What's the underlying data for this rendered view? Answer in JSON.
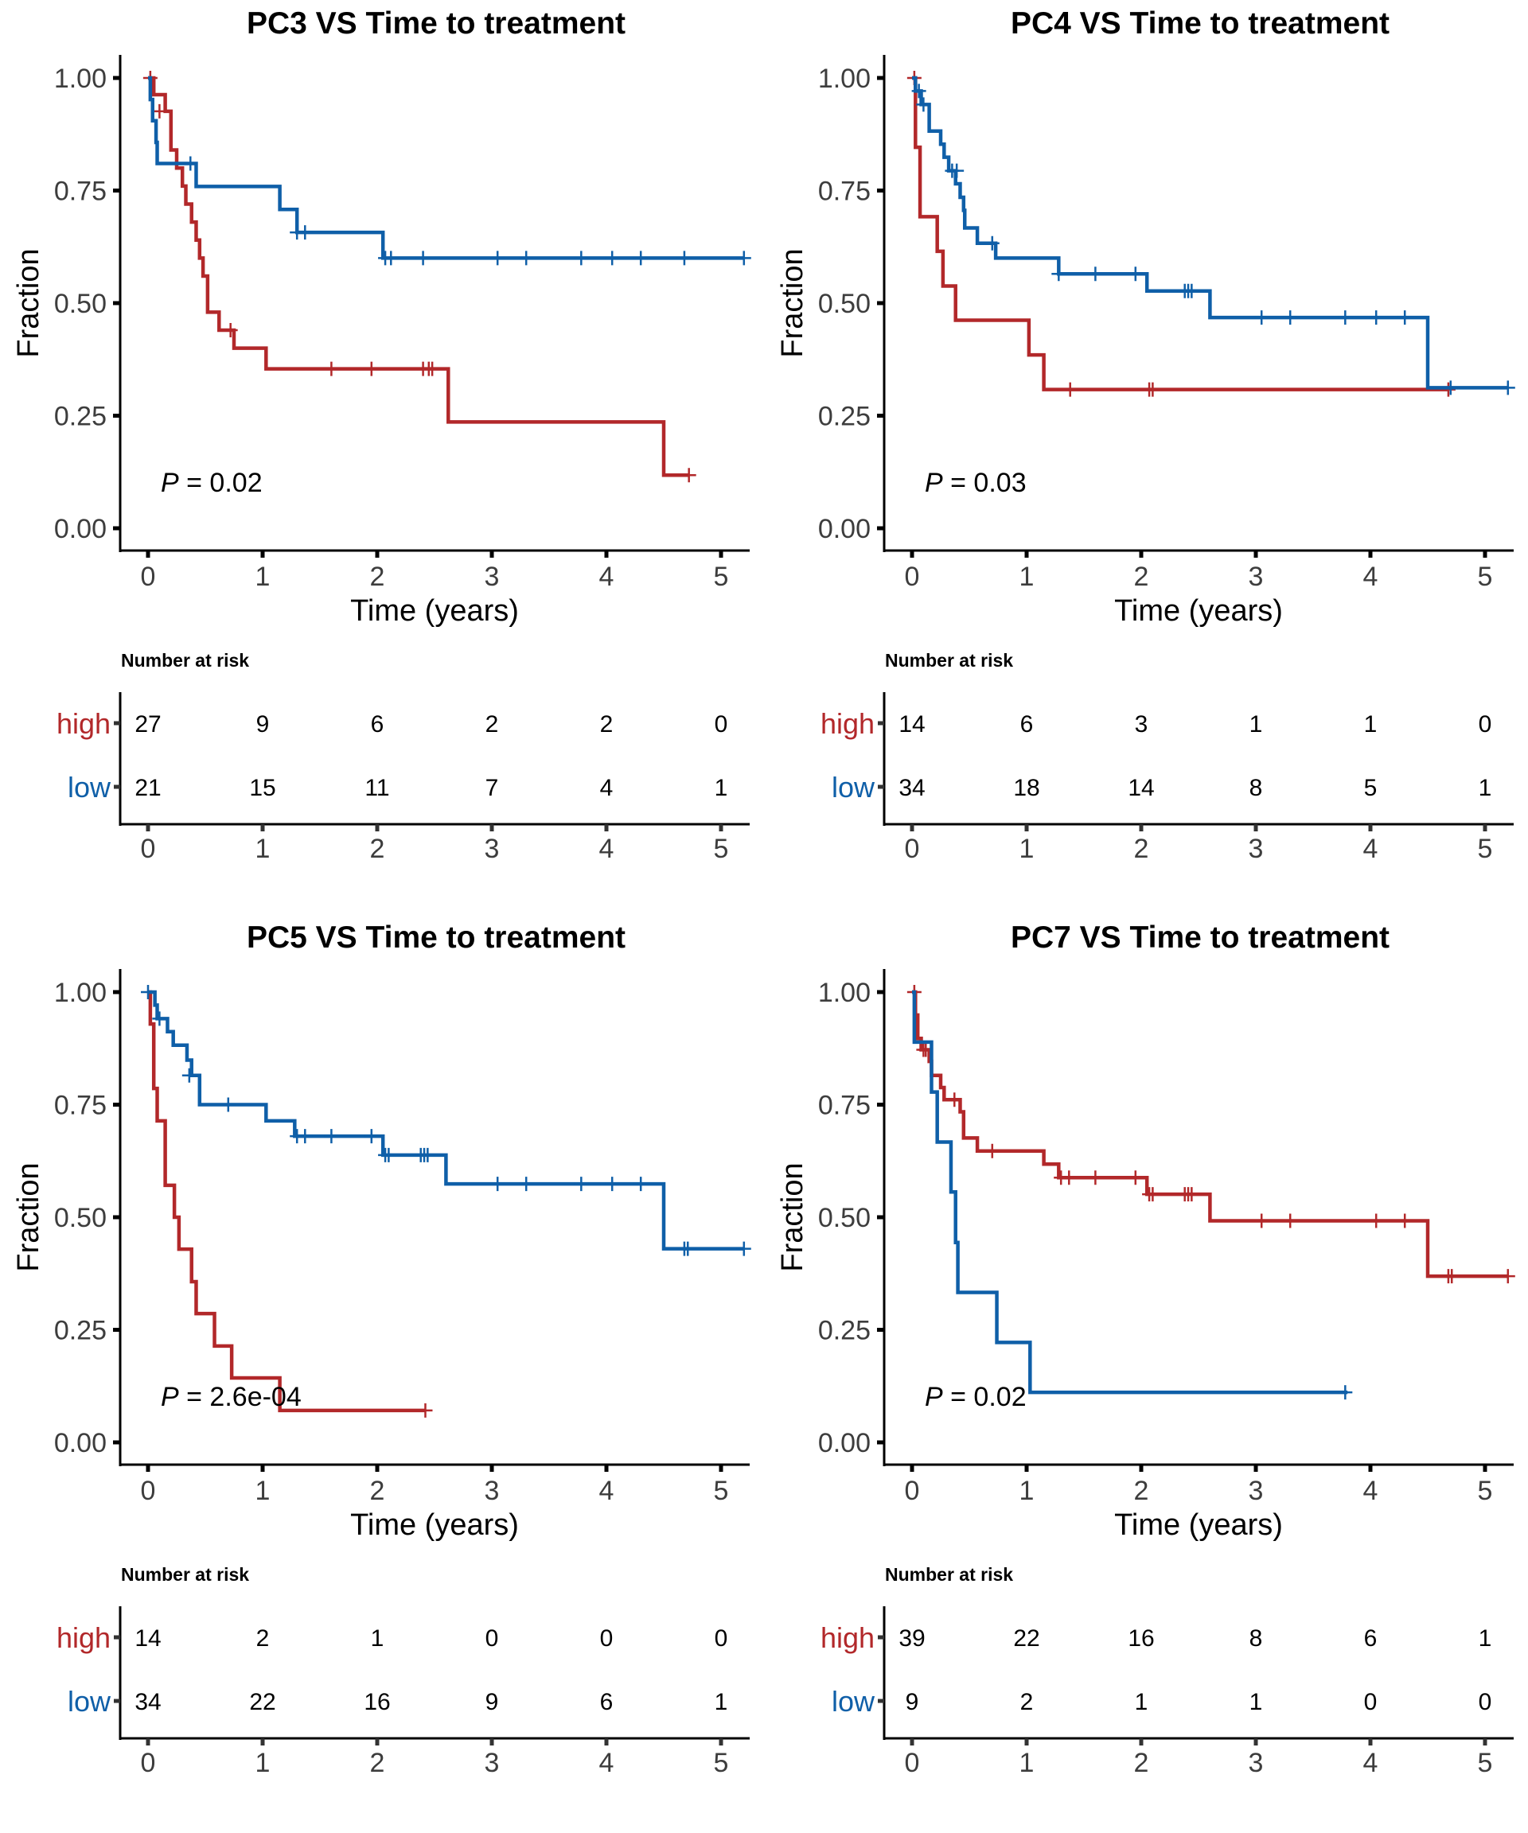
{
  "colors": {
    "high": "#B2282A",
    "low": "#0F5FA8",
    "axis": "#000000",
    "tick_text": "#3d3d3d"
  },
  "chart_data": [
    {
      "type": "line",
      "subtype": "kaplan-meier",
      "title": "PC3 VS Time to treatment",
      "xlabel": "Time (years)",
      "ylabel": "Fraction",
      "xlim": [
        -0.25,
        5.2
      ],
      "ylim": [
        -0.05,
        1.05
      ],
      "xticks": [
        "0",
        "1",
        "2",
        "3",
        "4",
        "5"
      ],
      "yticks": [
        "0.00",
        "0.25",
        "0.50",
        "0.75",
        "1.00"
      ],
      "grid": false,
      "annotation": {
        "p_label": "P",
        "p_value": " = 0.02"
      },
      "series": [
        {
          "name": "high",
          "steps": [
            [
              0,
              1.0
            ],
            [
              0.05,
              0.963
            ],
            [
              0.15,
              0.926
            ],
            [
              0.2,
              0.84
            ],
            [
              0.25,
              0.8
            ],
            [
              0.3,
              0.76
            ],
            [
              0.33,
              0.72
            ],
            [
              0.38,
              0.68
            ],
            [
              0.42,
              0.64
            ],
            [
              0.45,
              0.6
            ],
            [
              0.48,
              0.56
            ],
            [
              0.52,
              0.48
            ],
            [
              0.62,
              0.44
            ],
            [
              0.75,
              0.4
            ],
            [
              1.03,
              0.354
            ],
            [
              2.62,
              0.236
            ],
            [
              4.5,
              0.118
            ],
            [
              4.72,
              0.118
            ]
          ],
          "censor": [
            [
              0.02,
              1.0
            ],
            [
              0.1,
              0.926
            ],
            [
              0.72,
              0.44
            ],
            [
              1.6,
              0.354
            ],
            [
              1.95,
              0.354
            ],
            [
              2.4,
              0.354
            ],
            [
              2.45,
              0.354
            ],
            [
              2.48,
              0.354
            ],
            [
              4.72,
              0.118
            ]
          ]
        },
        {
          "name": "low",
          "steps": [
            [
              0,
              1.0
            ],
            [
              0.02,
              0.952
            ],
            [
              0.04,
              0.905
            ],
            [
              0.07,
              0.857
            ],
            [
              0.08,
              0.81
            ],
            [
              0.42,
              0.759
            ],
            [
              1.15,
              0.708
            ],
            [
              1.3,
              0.657
            ],
            [
              2.05,
              0.6
            ],
            [
              5.2,
              0.6
            ]
          ],
          "censor": [
            [
              0.37,
              0.81
            ],
            [
              1.3,
              0.657
            ],
            [
              1.37,
              0.657
            ],
            [
              2.07,
              0.6
            ],
            [
              2.12,
              0.6
            ],
            [
              2.4,
              0.6
            ],
            [
              3.05,
              0.6
            ],
            [
              3.3,
              0.6
            ],
            [
              3.78,
              0.6
            ],
            [
              4.05,
              0.6
            ],
            [
              4.3,
              0.6
            ],
            [
              4.68,
              0.6
            ],
            [
              5.2,
              0.6
            ]
          ]
        }
      ],
      "risk_table": {
        "title": "Number at risk",
        "times": [
          0,
          1,
          2,
          3,
          4,
          5
        ],
        "rows": [
          {
            "group": "high",
            "values": [
              "27",
              "9",
              "6",
              "2",
              "2",
              "0"
            ]
          },
          {
            "group": "low",
            "values": [
              "21",
              "15",
              "11",
              "7",
              "4",
              "1"
            ]
          }
        ]
      }
    },
    {
      "type": "line",
      "subtype": "kaplan-meier",
      "title": "PC4 VS Time to treatment",
      "xlabel": "Time (years)",
      "ylabel": "Fraction",
      "xlim": [
        -0.25,
        5.2
      ],
      "ylim": [
        -0.05,
        1.05
      ],
      "xticks": [
        "0",
        "1",
        "2",
        "3",
        "4",
        "5"
      ],
      "yticks": [
        "0.00",
        "0.25",
        "0.50",
        "0.75",
        "1.00"
      ],
      "grid": false,
      "annotation": {
        "p_label": "P",
        "p_value": " = 0.03"
      },
      "series": [
        {
          "name": "high",
          "steps": [
            [
              0,
              1.0
            ],
            [
              0.03,
              0.846
            ],
            [
              0.07,
              0.692
            ],
            [
              0.22,
              0.615
            ],
            [
              0.27,
              0.538
            ],
            [
              0.38,
              0.462
            ],
            [
              1.02,
              0.385
            ],
            [
              1.15,
              0.308
            ],
            [
              4.68,
              0.308
            ]
          ],
          "censor": [
            [
              0.02,
              1.0
            ],
            [
              1.38,
              0.308
            ],
            [
              2.07,
              0.308
            ],
            [
              2.1,
              0.308
            ],
            [
              4.68,
              0.308
            ]
          ]
        },
        {
          "name": "low",
          "steps": [
            [
              0,
              1.0
            ],
            [
              0.03,
              0.971
            ],
            [
              0.08,
              0.941
            ],
            [
              0.15,
              0.882
            ],
            [
              0.25,
              0.853
            ],
            [
              0.28,
              0.824
            ],
            [
              0.32,
              0.794
            ],
            [
              0.38,
              0.765
            ],
            [
              0.42,
              0.735
            ],
            [
              0.45,
              0.706
            ],
            [
              0.46,
              0.667
            ],
            [
              0.57,
              0.633
            ],
            [
              0.73,
              0.6
            ],
            [
              1.28,
              0.565
            ],
            [
              2.05,
              0.527
            ],
            [
              2.6,
              0.468
            ],
            [
              4.5,
              0.312
            ],
            [
              5.2,
              0.312
            ]
          ],
          "censor": [
            [
              0.06,
              0.971
            ],
            [
              0.1,
              0.941
            ],
            [
              0.35,
              0.794
            ],
            [
              0.39,
              0.794
            ],
            [
              0.7,
              0.633
            ],
            [
              1.28,
              0.565
            ],
            [
              1.6,
              0.565
            ],
            [
              1.95,
              0.565
            ],
            [
              2.38,
              0.527
            ],
            [
              2.41,
              0.527
            ],
            [
              2.44,
              0.527
            ],
            [
              3.05,
              0.468
            ],
            [
              3.3,
              0.468
            ],
            [
              3.78,
              0.468
            ],
            [
              4.05,
              0.468
            ],
            [
              4.3,
              0.468
            ],
            [
              4.7,
              0.312
            ],
            [
              5.2,
              0.312
            ]
          ]
        }
      ],
      "risk_table": {
        "title": "Number at risk",
        "times": [
          0,
          1,
          2,
          3,
          4,
          5
        ],
        "rows": [
          {
            "group": "high",
            "values": [
              "14",
              "6",
              "3",
              "1",
              "1",
              "0"
            ]
          },
          {
            "group": "low",
            "values": [
              "34",
              "18",
              "14",
              "8",
              "5",
              "1"
            ]
          }
        ]
      }
    },
    {
      "type": "line",
      "subtype": "kaplan-meier",
      "title": "PC5 VS Time to treatment",
      "xlabel": "Time (years)",
      "ylabel": "Fraction",
      "xlim": [
        -0.25,
        5.2
      ],
      "ylim": [
        -0.05,
        1.05
      ],
      "xticks": [
        "0",
        "1",
        "2",
        "3",
        "4",
        "5"
      ],
      "yticks": [
        "0.00",
        "0.25",
        "0.50",
        "0.75",
        "1.00"
      ],
      "grid": false,
      "annotation": {
        "p_label": "P",
        "p_value": " = 2.6e-04"
      },
      "series": [
        {
          "name": "high",
          "steps": [
            [
              0,
              1.0
            ],
            [
              0.02,
              0.929
            ],
            [
              0.05,
              0.786
            ],
            [
              0.08,
              0.714
            ],
            [
              0.15,
              0.571
            ],
            [
              0.23,
              0.5
            ],
            [
              0.27,
              0.429
            ],
            [
              0.38,
              0.357
            ],
            [
              0.42,
              0.286
            ],
            [
              0.58,
              0.214
            ],
            [
              0.73,
              0.143
            ],
            [
              1.15,
              0.071
            ],
            [
              2.42,
              0.071
            ]
          ],
          "censor": [
            [
              2.42,
              0.071
            ]
          ]
        },
        {
          "name": "low",
          "steps": [
            [
              0,
              1.0
            ],
            [
              0.06,
              0.971
            ],
            [
              0.08,
              0.941
            ],
            [
              0.17,
              0.912
            ],
            [
              0.22,
              0.882
            ],
            [
              0.34,
              0.849
            ],
            [
              0.38,
              0.815
            ],
            [
              0.45,
              0.75
            ],
            [
              1.03,
              0.714
            ],
            [
              1.28,
              0.68
            ],
            [
              2.05,
              0.638
            ],
            [
              2.6,
              0.574
            ],
            [
              4.5,
              0.43
            ],
            [
              5.2,
              0.43
            ]
          ],
          "censor": [
            [
              0.0,
              1.0
            ],
            [
              0.1,
              0.941
            ],
            [
              0.36,
              0.815
            ],
            [
              0.7,
              0.75
            ],
            [
              1.3,
              0.68
            ],
            [
              1.37,
              0.68
            ],
            [
              1.6,
              0.68
            ],
            [
              1.95,
              0.68
            ],
            [
              2.07,
              0.638
            ],
            [
              2.1,
              0.638
            ],
            [
              2.38,
              0.638
            ],
            [
              2.41,
              0.638
            ],
            [
              2.44,
              0.638
            ],
            [
              3.05,
              0.574
            ],
            [
              3.3,
              0.574
            ],
            [
              3.78,
              0.574
            ],
            [
              4.05,
              0.574
            ],
            [
              4.3,
              0.574
            ],
            [
              4.68,
              0.43
            ],
            [
              4.71,
              0.43
            ],
            [
              5.2,
              0.43
            ]
          ]
        }
      ],
      "risk_table": {
        "title": "Number at risk",
        "times": [
          0,
          1,
          2,
          3,
          4,
          5
        ],
        "rows": [
          {
            "group": "high",
            "values": [
              "14",
              "2",
              "1",
              "0",
              "0",
              "0"
            ]
          },
          {
            "group": "low",
            "values": [
              "34",
              "22",
              "16",
              "9",
              "6",
              "1"
            ]
          }
        ]
      }
    },
    {
      "type": "line",
      "subtype": "kaplan-meier",
      "title": "PC7 VS Time to treatment",
      "xlabel": "Time (years)",
      "ylabel": "Fraction",
      "xlim": [
        -0.25,
        5.2
      ],
      "ylim": [
        -0.05,
        1.05
      ],
      "xticks": [
        "0",
        "1",
        "2",
        "3",
        "4",
        "5"
      ],
      "yticks": [
        "0.00",
        "0.25",
        "0.50",
        "0.75",
        "1.00"
      ],
      "grid": false,
      "annotation": {
        "p_label": "P",
        "p_value": " = 0.02"
      },
      "series": [
        {
          "name": "high",
          "steps": [
            [
              0,
              1.0
            ],
            [
              0.03,
              0.949
            ],
            [
              0.05,
              0.897
            ],
            [
              0.08,
              0.872
            ],
            [
              0.15,
              0.846
            ],
            [
              0.17,
              0.815
            ],
            [
              0.25,
              0.788
            ],
            [
              0.28,
              0.761
            ],
            [
              0.42,
              0.734
            ],
            [
              0.45,
              0.676
            ],
            [
              0.57,
              0.647
            ],
            [
              1.15,
              0.618
            ],
            [
              1.28,
              0.588
            ],
            [
              2.05,
              0.551
            ],
            [
              2.6,
              0.492
            ],
            [
              4.5,
              0.369
            ],
            [
              5.2,
              0.369
            ]
          ],
          "censor": [
            [
              0.02,
              1.0
            ],
            [
              0.1,
              0.872
            ],
            [
              0.12,
              0.872
            ],
            [
              0.37,
              0.761
            ],
            [
              0.7,
              0.647
            ],
            [
              1.3,
              0.588
            ],
            [
              1.37,
              0.588
            ],
            [
              1.6,
              0.588
            ],
            [
              1.95,
              0.588
            ],
            [
              2.07,
              0.551
            ],
            [
              2.1,
              0.551
            ],
            [
              2.38,
              0.551
            ],
            [
              2.41,
              0.551
            ],
            [
              2.44,
              0.551
            ],
            [
              3.05,
              0.492
            ],
            [
              3.3,
              0.492
            ],
            [
              4.05,
              0.492
            ],
            [
              4.3,
              0.492
            ],
            [
              4.68,
              0.369
            ],
            [
              4.71,
              0.369
            ],
            [
              5.2,
              0.369
            ]
          ]
        },
        {
          "name": "low",
          "steps": [
            [
              0,
              1.0
            ],
            [
              0.02,
              0.889
            ],
            [
              0.17,
              0.778
            ],
            [
              0.22,
              0.667
            ],
            [
              0.34,
              0.556
            ],
            [
              0.38,
              0.444
            ],
            [
              0.4,
              0.333
            ],
            [
              0.74,
              0.222
            ],
            [
              1.03,
              0.111
            ],
            [
              3.8,
              0.111
            ]
          ],
          "censor": [
            [
              3.78,
              0.111
            ]
          ]
        }
      ],
      "risk_table": {
        "title": "Number at risk",
        "times": [
          0,
          1,
          2,
          3,
          4,
          5
        ],
        "rows": [
          {
            "group": "high",
            "values": [
              "39",
              "22",
              "16",
              "8",
              "6",
              "1"
            ]
          },
          {
            "group": "low",
            "values": [
              "9",
              "2",
              "1",
              "1",
              "0",
              "0"
            ]
          }
        ]
      }
    }
  ]
}
